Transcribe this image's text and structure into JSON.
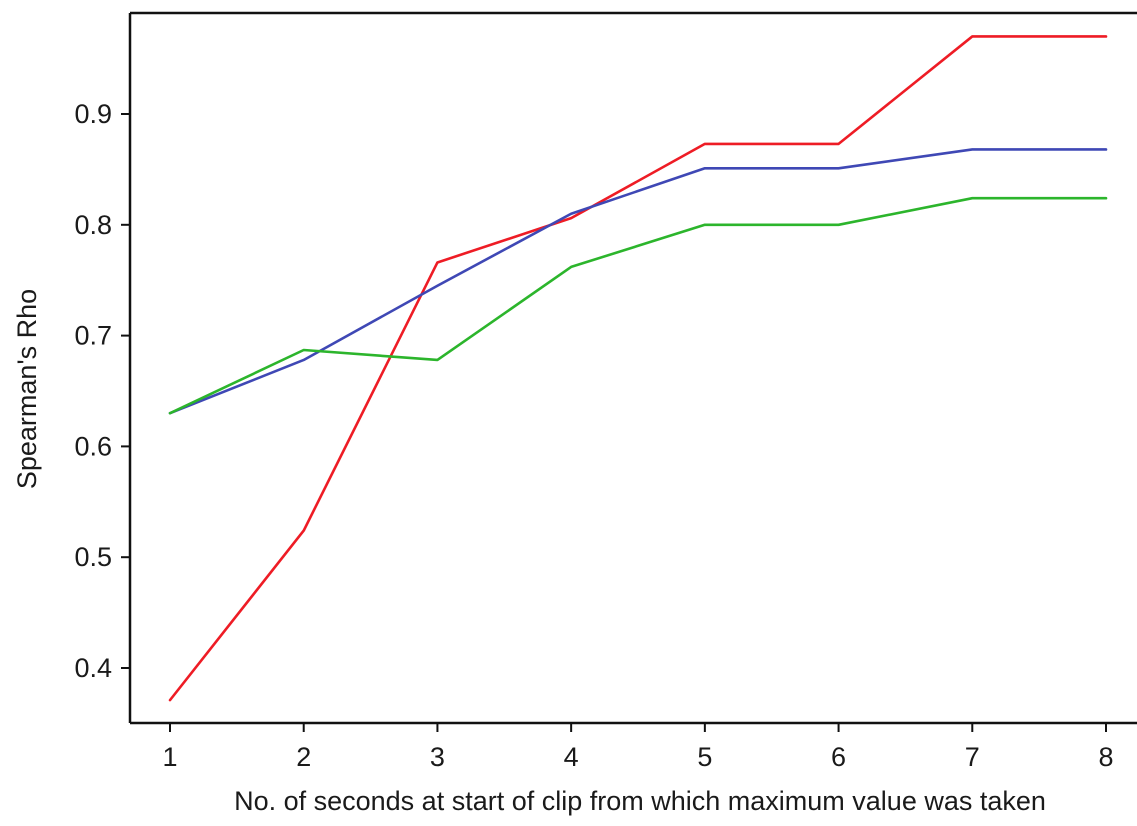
{
  "chart_data": {
    "type": "line",
    "title": "",
    "xlabel": "No. of seconds at start of clip from which maximum value was taken",
    "ylabel": "Spearman's Rho",
    "x": [
      1,
      2,
      3,
      4,
      5,
      6,
      7,
      8
    ],
    "x_ticks": [
      "1",
      "2",
      "3",
      "4",
      "5",
      "6",
      "7",
      "8"
    ],
    "y_ticks": [
      "0.4",
      "0.5",
      "0.6",
      "0.7",
      "0.8",
      "0.9"
    ],
    "y_tick_values": [
      0.4,
      0.5,
      0.6,
      0.7,
      0.8,
      0.9
    ],
    "xlim": [
      0.7,
      8.2
    ],
    "ylim": [
      0.35,
      0.99
    ],
    "grid": false,
    "legend": "none",
    "series": [
      {
        "color": "#ee1c25",
        "values": [
          0.371,
          0.524,
          0.766,
          0.806,
          0.873,
          0.873,
          0.97,
          0.97
        ]
      },
      {
        "color": "#3f48b5",
        "values": [
          0.63,
          0.678,
          0.745,
          0.81,
          0.851,
          0.851,
          0.868,
          0.868
        ]
      },
      {
        "color": "#2cb52c",
        "values": [
          0.63,
          0.687,
          0.678,
          0.762,
          0.8,
          0.8,
          0.824,
          0.824
        ]
      }
    ]
  }
}
